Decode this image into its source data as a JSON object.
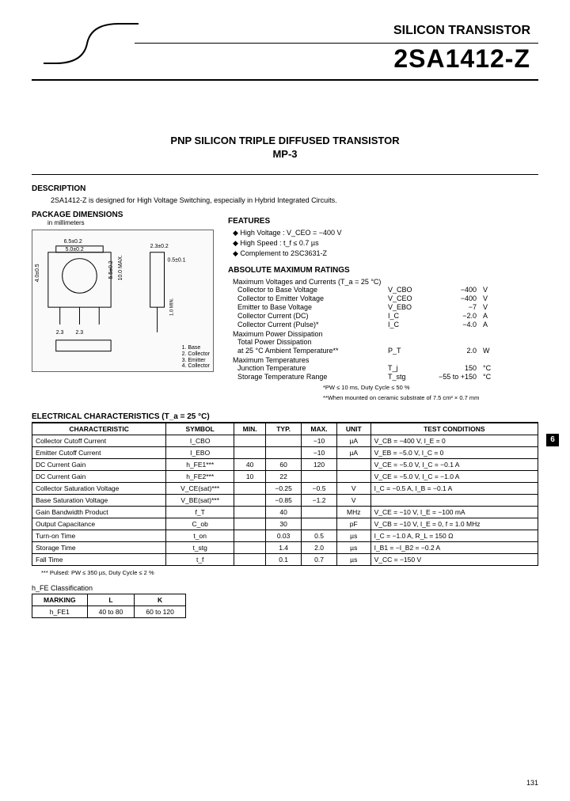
{
  "header": {
    "super_title": "SILICON TRANSISTOR",
    "main_title": "2SA1412-Z",
    "subtitle": "PNP SILICON TRIPLE DIFFUSED TRANSISTOR",
    "subtitle2": "MP-3"
  },
  "description": {
    "heading": "DESCRIPTION",
    "text": "2SA1412-Z is designed for High Voltage Switching, especially in Hybrid Integrated Circuits."
  },
  "package": {
    "heading": "PACKAGE DIMENSIONS",
    "sub": "in millimeters",
    "dims": [
      "6.5±0.2",
      "5.0±0.2",
      "4.0±0.5",
      "0.8",
      "2.3",
      "2.3",
      "1.5±0.2",
      "5.5±0.2",
      "10.0 MAX.",
      "2.0 MIN.",
      "0.9 MAX",
      "0.8 MAX",
      "2.3±0.2",
      "0.5±0.1",
      "1.0 MIN.",
      "1.9 TYP.",
      "0.5"
    ],
    "pins": [
      {
        "n": "1",
        "label": "Base"
      },
      {
        "n": "2",
        "label": "Collector"
      },
      {
        "n": "3",
        "label": "Emitter"
      },
      {
        "n": "4",
        "label": "Collector"
      }
    ]
  },
  "features": {
    "heading": "FEATURES",
    "items": [
      "High Voltage : V_CEO = −400 V",
      "High Speed : t_f ≤ 0.7 µs",
      "Complement to 2SC3631-Z"
    ]
  },
  "amr": {
    "heading": "ABSOLUTE MAXIMUM RATINGS",
    "sub1": "Maximum Voltages and Currents (T_a = 25 °C)",
    "rows1": [
      {
        "label": "Collector to Base Voltage",
        "sym": "V_CBO",
        "val": "−400",
        "unit": "V"
      },
      {
        "label": "Collector to Emitter Voltage",
        "sym": "V_CEO",
        "val": "−400",
        "unit": "V"
      },
      {
        "label": "Emitter to Base Voltage",
        "sym": "V_EBO",
        "val": "−7",
        "unit": "V"
      },
      {
        "label": "Collector Current (DC)",
        "sym": "I_C",
        "val": "−2.0",
        "unit": "A"
      },
      {
        "label": "Collector Current (Pulse)*",
        "sym": "I_C",
        "val": "−4.0",
        "unit": "A"
      }
    ],
    "sub2": "Maximum Power Dissipation",
    "rows2": [
      {
        "label": "Total Power Dissipation",
        "sym": "",
        "val": "",
        "unit": ""
      },
      {
        "label": "  at 25 °C Ambient Temperature**",
        "sym": "P_T",
        "val": "2.0",
        "unit": "W"
      }
    ],
    "sub3": "Maximum Temperatures",
    "rows3": [
      {
        "label": "Junction Temperature",
        "sym": "T_j",
        "val": "150",
        "unit": "°C"
      },
      {
        "label": "Storage Temperature Range",
        "sym": "T_stg",
        "val": "−55 to +150",
        "unit": "°C"
      }
    ],
    "note1": "*PW ≤ 10 ms, Duty Cycle ≤ 50 %",
    "note2": "**When mounted on ceramic substrate of 7.5 cm² × 0.7 mm"
  },
  "side_tab": "6",
  "elec": {
    "heading": "ELECTRICAL CHARACTERISTICS (T_a = 25 °C)",
    "columns": [
      "CHARACTERISTIC",
      "SYMBOL",
      "MIN.",
      "TYP.",
      "MAX.",
      "UNIT",
      "TEST CONDITIONS"
    ],
    "rows": [
      [
        "Collector Cutoff Current",
        "I_CBO",
        "",
        "",
        "−10",
        "µA",
        "V_CB = −400 V, I_E = 0"
      ],
      [
        "Emitter Cutoff Current",
        "I_EBO",
        "",
        "",
        "−10",
        "µA",
        "V_EB = −5.0 V, I_C = 0"
      ],
      [
        "DC Current Gain",
        "h_FE1***",
        "40",
        "60",
        "120",
        "",
        "V_CE = −5.0 V, I_C = −0.1 A"
      ],
      [
        "DC Current Gain",
        "h_FE2***",
        "10",
        "22",
        "",
        "",
        "V_CE = −5.0 V, I_C = −1.0 A"
      ],
      [
        "Collector Saturation Voltage",
        "V_CE(sat)***",
        "",
        "−0.25",
        "−0.5",
        "V",
        "I_C = −0.5 A, I_B = −0.1 A"
      ],
      [
        "Base Saturation Voltage",
        "V_BE(sat)***",
        "",
        "−0.85",
        "−1.2",
        "V",
        ""
      ],
      [
        "Gain Bandwidth Product",
        "f_T",
        "",
        "40",
        "",
        "MHz",
        "V_CE = −10 V, I_E = −100 mA"
      ],
      [
        "Output Capacitance",
        "C_ob",
        "",
        "30",
        "",
        "pF",
        "V_CB = −10 V, I_E = 0, f = 1.0 MHz"
      ],
      [
        "Turn-on Time",
        "t_on",
        "",
        "0.03",
        "0.5",
        "µs",
        "I_C = −1.0 A, R_L = 150 Ω"
      ],
      [
        "Storage Time",
        "t_stg",
        "",
        "1.4",
        "2.0",
        "µs",
        "I_B1 = −I_B2 = −0.2 A"
      ],
      [
        "Fall Time",
        "t_f",
        "",
        "0.1",
        "0.7",
        "µs",
        "V_CC = −150 V"
      ]
    ],
    "note": "*** Pulsed: PW ≤ 350 µs, Duty Cycle ≤ 2 %"
  },
  "hfe": {
    "heading": "h_FE  Classification",
    "columns": [
      "MARKING",
      "L",
      "K"
    ],
    "row": [
      "h_FE1",
      "40 to 80",
      "60 to 120"
    ]
  },
  "page_number": "131"
}
